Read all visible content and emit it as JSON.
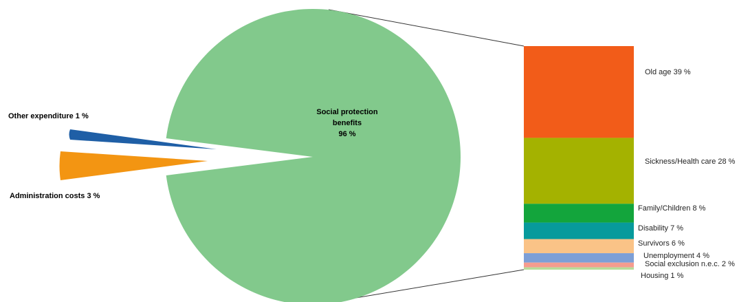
{
  "chart_data": {
    "type": "pie",
    "title": "",
    "pie": {
      "slices": [
        {
          "label": "Social protection benefits",
          "label_lines": [
            "Social protection",
            "benefits",
            "96 %"
          ],
          "value": 96,
          "color": "#82c98c"
        },
        {
          "label": "Other expenditure",
          "label_text": "Other expenditure 1 %",
          "value": 1,
          "color": "#1f5fa6"
        },
        {
          "label": "Administration costs",
          "label_text": "Administration costs 3 %",
          "value": 3,
          "color": "#f39512"
        }
      ]
    },
    "breakdown": {
      "type": "stacked-bar",
      "of": "Social protection benefits",
      "segments": [
        {
          "label": "Old age",
          "label_text": "Old age 39 %",
          "value": 39,
          "color": "#f25c19"
        },
        {
          "label": "Sickness/Health care",
          "label_text": "Sickness/Health care 28 %",
          "value": 28,
          "color": "#a4b200"
        },
        {
          "label": "Family/Children",
          "label_text": "Family/Children 8 %",
          "value": 8,
          "color": "#13a53c"
        },
        {
          "label": "Disability",
          "label_text": "Disability 7 %",
          "value": 7,
          "color": "#079a9c"
        },
        {
          "label": "Survivors",
          "label_text": "Survivors 6 %",
          "value": 6,
          "color": "#fac387"
        },
        {
          "label": "Unemployment",
          "label_text": "Unemployment 4 %",
          "value": 4,
          "color": "#7d9fd6"
        },
        {
          "label": "Social exclusion n.e.c.",
          "label_text": "Social exclusion n.e.c. 2 %",
          "value": 2,
          "color": "#f59c8f"
        },
        {
          "label": "Housing",
          "label_text": "Housing 1 %",
          "value": 1,
          "color": "#b7dc9a"
        }
      ]
    }
  }
}
